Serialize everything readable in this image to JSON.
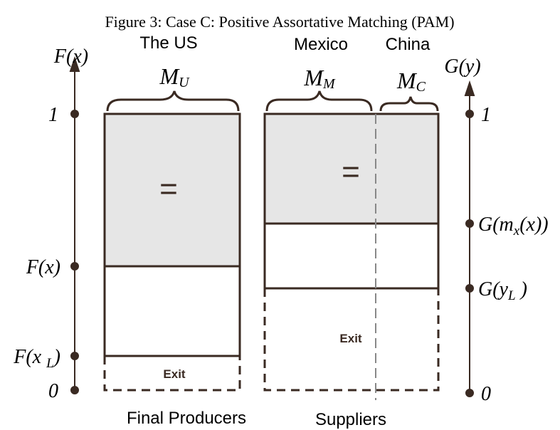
{
  "title": "Figure 3: Case C: Positive Assortative Matching (PAM)",
  "groups": {
    "us": "The US",
    "mexico": "Mexico",
    "china": "China"
  },
  "axes": {
    "left_label": "F(x)",
    "right_label": "G(y)"
  },
  "measures": {
    "us": {
      "base": "M",
      "sub": "U"
    },
    "mexico": {
      "base": "M",
      "sub": "M"
    },
    "china": {
      "base": "M",
      "sub": "C"
    }
  },
  "left_ticks": {
    "top": "1",
    "fx": "F(x)",
    "fxl": {
      "base": "F(x ",
      "sub": "L",
      "tail": ")"
    },
    "bottom": "0"
  },
  "right_ticks": {
    "top": "1",
    "gm": {
      "base": "G(m",
      "sub": "x",
      "tail": "(x))"
    },
    "gyl": {
      "base": "G(y",
      "sub": "L",
      "tail": " )"
    },
    "bottom": "0"
  },
  "boxes": {
    "us_equal": "=",
    "supplier_equal": "=",
    "us_exit": "Exit",
    "supplier_exit": "Exit"
  },
  "footer": {
    "left": "Final Producers",
    "right": "Suppliers"
  }
}
